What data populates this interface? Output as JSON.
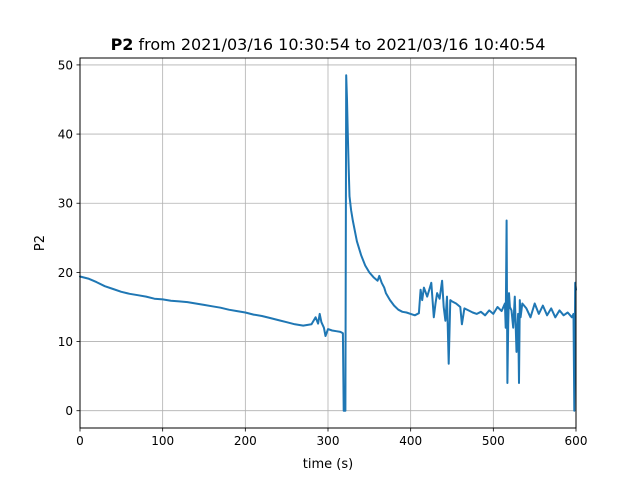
{
  "figure": {
    "title_bold": "P2",
    "title_rest": " from 2021/03/16 10:30:54 to 2021/03/16 10:40:54"
  },
  "chart_data": {
    "type": "line",
    "title": "P2 from 2021/03/16 10:30:54 to 2021/03/16 10:40:54",
    "xlabel": "time (s)",
    "ylabel": "P2",
    "xlim": [
      0,
      600
    ],
    "ylim": [
      -2.5,
      51
    ],
    "xticks": [
      0,
      100,
      200,
      300,
      400,
      500,
      600
    ],
    "yticks": [
      0,
      10,
      20,
      30,
      40,
      50
    ],
    "grid": true,
    "legend": "none",
    "color": "#1f77b4",
    "series": [
      {
        "x": [
          0,
          10,
          20,
          30,
          40,
          50,
          60,
          70,
          80,
          90,
          100,
          110,
          120,
          130,
          140,
          150,
          160,
          170,
          180,
          190,
          200,
          210,
          220,
          230,
          240,
          250,
          260,
          270,
          280,
          285,
          288,
          290,
          292,
          295,
          297,
          300,
          305,
          310,
          315,
          318,
          319,
          320,
          321,
          322,
          323,
          324,
          325,
          326,
          328,
          330,
          335,
          340,
          345,
          350,
          355,
          360,
          362,
          365,
          368,
          370,
          375,
          380,
          385,
          390,
          395,
          400,
          405,
          410,
          412,
          414,
          416,
          420,
          425,
          428,
          430,
          432,
          435,
          438,
          440,
          442,
          444,
          446,
          448,
          450,
          455,
          460,
          462,
          465,
          470,
          475,
          480,
          485,
          490,
          495,
          500,
          505,
          510,
          514,
          515,
          516,
          517,
          518,
          519,
          520,
          522,
          524,
          526,
          528,
          530,
          531,
          532,
          533,
          535,
          540,
          545,
          550,
          555,
          560,
          565,
          570,
          575,
          580,
          585,
          590,
          595,
          597,
          598,
          599,
          600
        ],
        "y": [
          19.4,
          19.1,
          18.6,
          18.0,
          17.6,
          17.2,
          16.9,
          16.7,
          16.5,
          16.2,
          16.1,
          15.9,
          15.8,
          15.7,
          15.5,
          15.3,
          15.1,
          14.9,
          14.6,
          14.4,
          14.2,
          13.9,
          13.7,
          13.4,
          13.1,
          12.8,
          12.5,
          12.3,
          12.5,
          13.5,
          12.6,
          14.0,
          12.8,
          12.0,
          10.8,
          11.8,
          11.6,
          11.5,
          11.4,
          11.2,
          0.0,
          0.0,
          0.0,
          48.5,
          45.0,
          40.0,
          35.0,
          31.0,
          29.0,
          27.5,
          24.5,
          22.5,
          21.0,
          20.0,
          19.3,
          18.8,
          19.5,
          18.5,
          17.8,
          17.0,
          16.0,
          15.2,
          14.6,
          14.3,
          14.2,
          14.0,
          13.8,
          14.1,
          17.5,
          16.0,
          17.8,
          16.5,
          18.5,
          13.5,
          15.5,
          17.0,
          16.2,
          18.8,
          15.0,
          13.0,
          16.5,
          6.8,
          16.0,
          15.8,
          15.5,
          15.0,
          12.5,
          14.8,
          14.5,
          14.2,
          14.0,
          14.3,
          13.8,
          14.5,
          14.0,
          15.0,
          14.4,
          15.5,
          12.0,
          27.5,
          4.0,
          12.5,
          17.0,
          15.0,
          14.5,
          12.0,
          16.5,
          8.5,
          14.0,
          4.0,
          16.0,
          13.5,
          15.5,
          14.8,
          13.5,
          15.5,
          14.0,
          15.2,
          13.8,
          14.8,
          13.5,
          14.5,
          13.8,
          14.2,
          13.5,
          14.0,
          0.0,
          18.5,
          17.5
        ]
      }
    ]
  }
}
